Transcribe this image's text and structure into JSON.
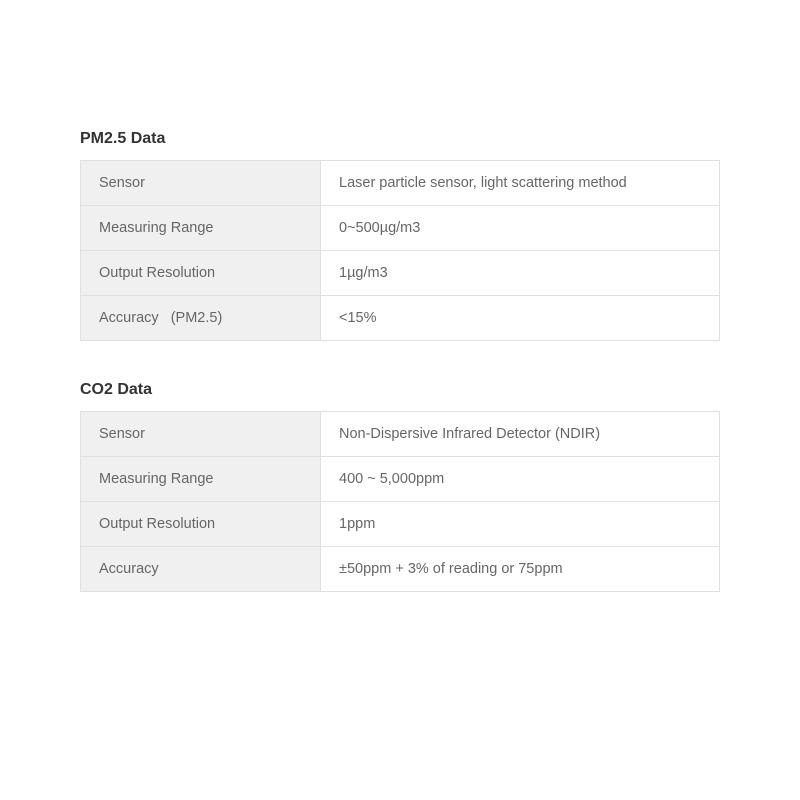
{
  "sections": [
    {
      "title": "PM2.5 Data",
      "rows": [
        {
          "label": "Sensor",
          "value": "Laser particle sensor, light scattering method"
        },
        {
          "label": "Measuring Range",
          "value": "0~500µg/m3"
        },
        {
          "label": "Output Resolution",
          "value": " 1µg/m3"
        },
        {
          "label": "Accuracy   (PM2.5)",
          "value": "<15%"
        }
      ]
    },
    {
      "title": "CO2 Data",
      "rows": [
        {
          "label": "Sensor",
          "value": "Non-Dispersive Infrared Detector (NDIR)"
        },
        {
          "label": " Measuring Range",
          "value": " 400 ~ 5,000ppm"
        },
        {
          "label": " Output Resolution",
          "value": " 1ppm"
        },
        {
          "label": "Accuracy",
          "value": " ±50ppm + 3% of reading or 75ppm"
        }
      ]
    }
  ],
  "styling": {
    "background_color": "#ffffff",
    "border_color": "#e0e0e0",
    "label_bg_color": "#f0f0f0",
    "value_bg_color": "#ffffff",
    "text_color": "#666666",
    "title_color": "#333333",
    "title_fontsize": 16,
    "cell_fontsize": 14.5,
    "label_column_width": 240,
    "cell_padding": "14px 18px",
    "section_spacing": 40
  }
}
